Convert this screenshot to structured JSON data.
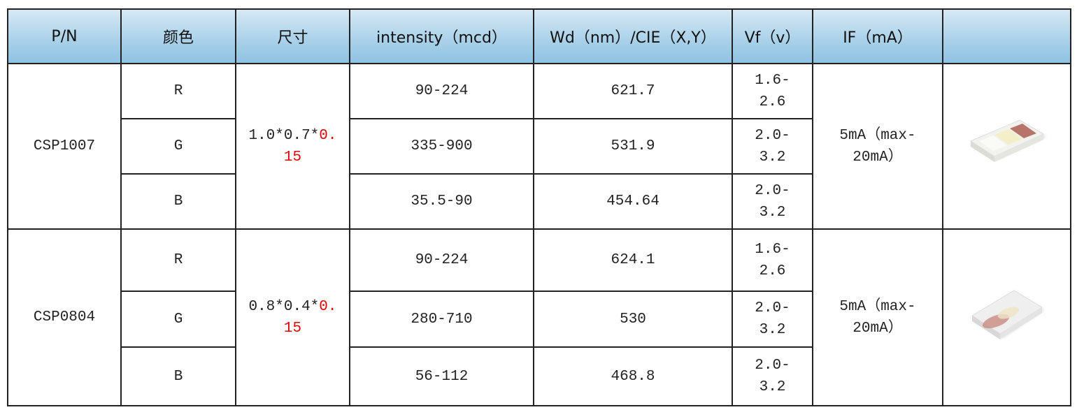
{
  "table": {
    "header": [
      "P/N",
      "颜色",
      "尺寸",
      "intensity（mcd）",
      "Wd（nm）/CIE（X,Y）",
      "Vf（v）",
      "IF（mA）"
    ],
    "groups": [
      {
        "pn": "CSP1007",
        "size": [
          "1.0*0.7*",
          "0.15"
        ],
        "current": "5mA（max-20mA）",
        "rows": [
          {
            "color": "R",
            "intensity": "90-224",
            "wd": "621.7",
            "vf": "1.6-2.6"
          },
          {
            "color": "G",
            "intensity": "335-900",
            "wd": "531.9",
            "vf": "2.0-3.2"
          },
          {
            "color": "B",
            "intensity": "35.5-90",
            "wd": "454.64",
            "vf": "2.0-3.2"
          }
        ]
      },
      {
        "pn": "CSP0804",
        "size": [
          "0.8*0.4*",
          "0.15"
        ],
        "current": "5mA（max-20mA）",
        "rows": [
          {
            "color": "R",
            "intensity": "90-224",
            "wd": "624.1",
            "vf": "1.6-2.6"
          },
          {
            "color": "G",
            "intensity": "280-710",
            "wd": "530",
            "vf": "2.0-3.2"
          },
          {
            "color": "B",
            "intensity": "56-112",
            "wd": "468.8",
            "vf": "2.0-3.2"
          }
        ]
      }
    ]
  }
}
